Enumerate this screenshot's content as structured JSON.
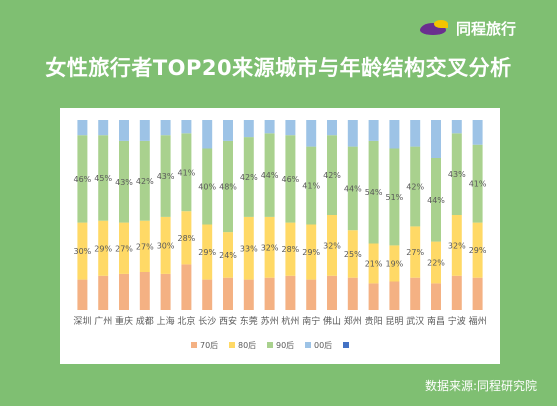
{
  "header": {
    "logo_text": "同程旅行",
    "title": "女性旅行者TOP20来源城市与年龄结构交叉分析"
  },
  "footer": {
    "source": "数据来源:同程研究院"
  },
  "colors": {
    "background": "#7fbf72",
    "series_70": "#f4b183",
    "series_80": "#ffd966",
    "series_90": "#a9d18e",
    "series_00": "#9dc3e6",
    "legend_extra": "#4472c4"
  },
  "chart_data": {
    "type": "bar",
    "stacked": "percent",
    "title": "",
    "xlabel": "",
    "ylabel": "",
    "ylim": [
      0,
      100
    ],
    "grid": false,
    "legend_placement": "bottom",
    "legend_entries": [
      "70后",
      "80后",
      "90后",
      "00后",
      ""
    ],
    "categories": [
      "深圳",
      "广州",
      "重庆",
      "成都",
      "上海",
      "北京",
      "长沙",
      "西安",
      "东莞",
      "苏州",
      "杭州",
      "南宁",
      "佛山",
      "郑州",
      "贵阳",
      "昆明",
      "武汉",
      "南昌",
      "宁波",
      "福州"
    ],
    "series": [
      {
        "name": "70后",
        "values": [
          16,
          18,
          19,
          20,
          19,
          24,
          16,
          17,
          16,
          17,
          18,
          16,
          18,
          17,
          14,
          15,
          17,
          14,
          18,
          17
        ]
      },
      {
        "name": "80后",
        "values": [
          30,
          29,
          27,
          27,
          30,
          28,
          29,
          24,
          33,
          32,
          28,
          29,
          32,
          25,
          21,
          19,
          27,
          22,
          32,
          29
        ]
      },
      {
        "name": "90后",
        "values": [
          46,
          45,
          43,
          42,
          43,
          41,
          40,
          48,
          42,
          44,
          46,
          41,
          42,
          44,
          54,
          51,
          42,
          44,
          43,
          41
        ]
      },
      {
        "name": "00后",
        "values": [
          8,
          8,
          11,
          11,
          8,
          7,
          15,
          11,
          9,
          7,
          8,
          14,
          8,
          14,
          11,
          15,
          14,
          20,
          7,
          13
        ]
      }
    ],
    "data_labels": [
      "80后",
      "90后"
    ]
  }
}
